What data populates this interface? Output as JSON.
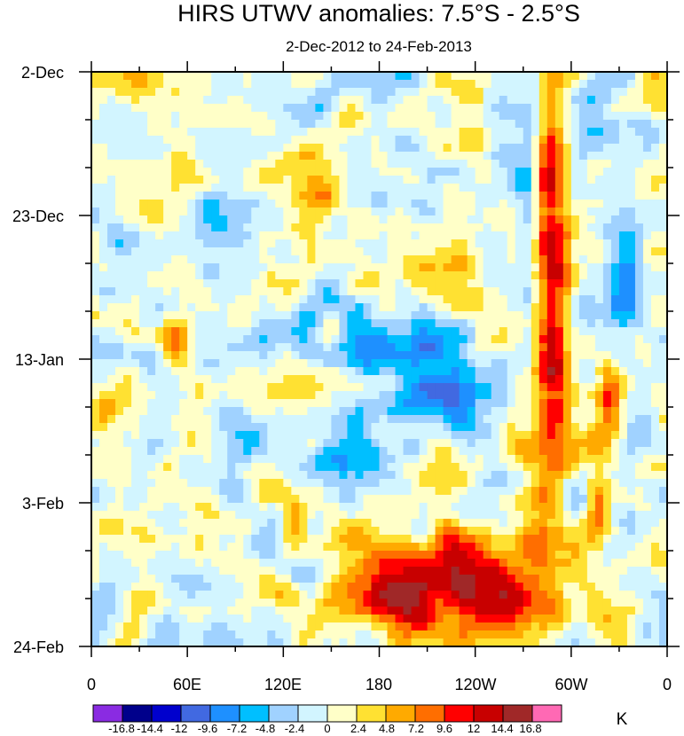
{
  "chart_data": {
    "type": "heatmap",
    "title": "HIRS UTWV anomalies: 7.5°S - 2.5°S",
    "subtitle": "2-Dec-2012 to 24-Feb-2013",
    "xlabel": "",
    "ylabel": "",
    "x_ticks": [
      "0",
      "60E",
      "120E",
      "180",
      "120W",
      "60W",
      "0"
    ],
    "x_range_deg_east": [
      0,
      360
    ],
    "y_ticks": [
      "2-Dec",
      "23-Dec",
      "13-Jan",
      "3-Feb",
      "24-Feb"
    ],
    "y_range": [
      "2-Dec-2012",
      "24-Feb-2013"
    ],
    "colorbar": {
      "unit": "K",
      "levels": [
        "-16.8",
        "-14.4",
        "-12",
        "-9.6",
        "-7.2",
        "-4.8",
        "-2.4",
        "0",
        "2.4",
        "4.8",
        "7.2",
        "9.6",
        "12",
        "14.4",
        "16.8"
      ],
      "colors": [
        "#8a2be2",
        "#00008b",
        "#0000cd",
        "#4169e1",
        "#1e90ff",
        "#00bfff",
        "#a0d2ff",
        "#d2f5ff",
        "#ffffc8",
        "#ffe132",
        "#ffaa00",
        "#ff6e00",
        "#ff0000",
        "#c80000",
        "#a02828",
        "#ff69b4"
      ]
    }
  }
}
